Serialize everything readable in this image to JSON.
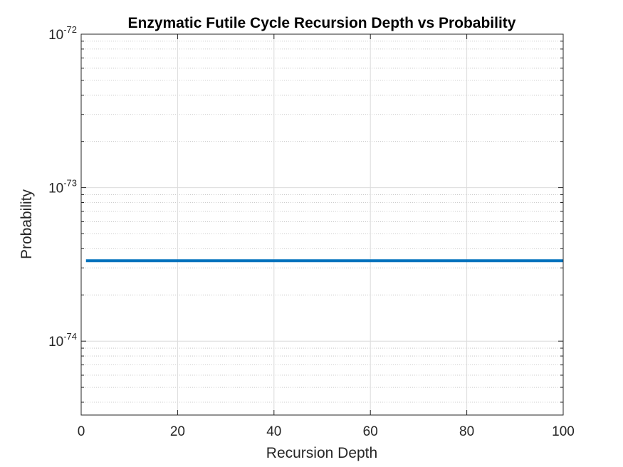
{
  "chart_data": {
    "type": "line",
    "title": "Enzymatic Futile Cycle Recursion Depth vs Probability",
    "xlabel": "Recursion Depth",
    "ylabel": "Probability",
    "xlim": [
      0,
      100
    ],
    "ylim": [
      3.3e-75,
      1e-72
    ],
    "yscale": "log",
    "grid": true,
    "minor_grid": true,
    "line_color": "#0072BD",
    "x_ticks": [
      0,
      20,
      40,
      60,
      80,
      100
    ],
    "x_tick_labels": [
      "0",
      "20",
      "40",
      "60",
      "80",
      "100"
    ],
    "y_ticks": [
      {
        "value": 1e-74,
        "base": "10",
        "exponent": "-74"
      },
      {
        "value": 1e-73,
        "base": "10",
        "exponent": "-73"
      },
      {
        "value": 1e-72,
        "base": "10",
        "exponent": "-72"
      }
    ],
    "series": [
      {
        "x": [
          1,
          100
        ],
        "y": [
          3.34e-74,
          3.34e-74
        ]
      }
    ]
  }
}
